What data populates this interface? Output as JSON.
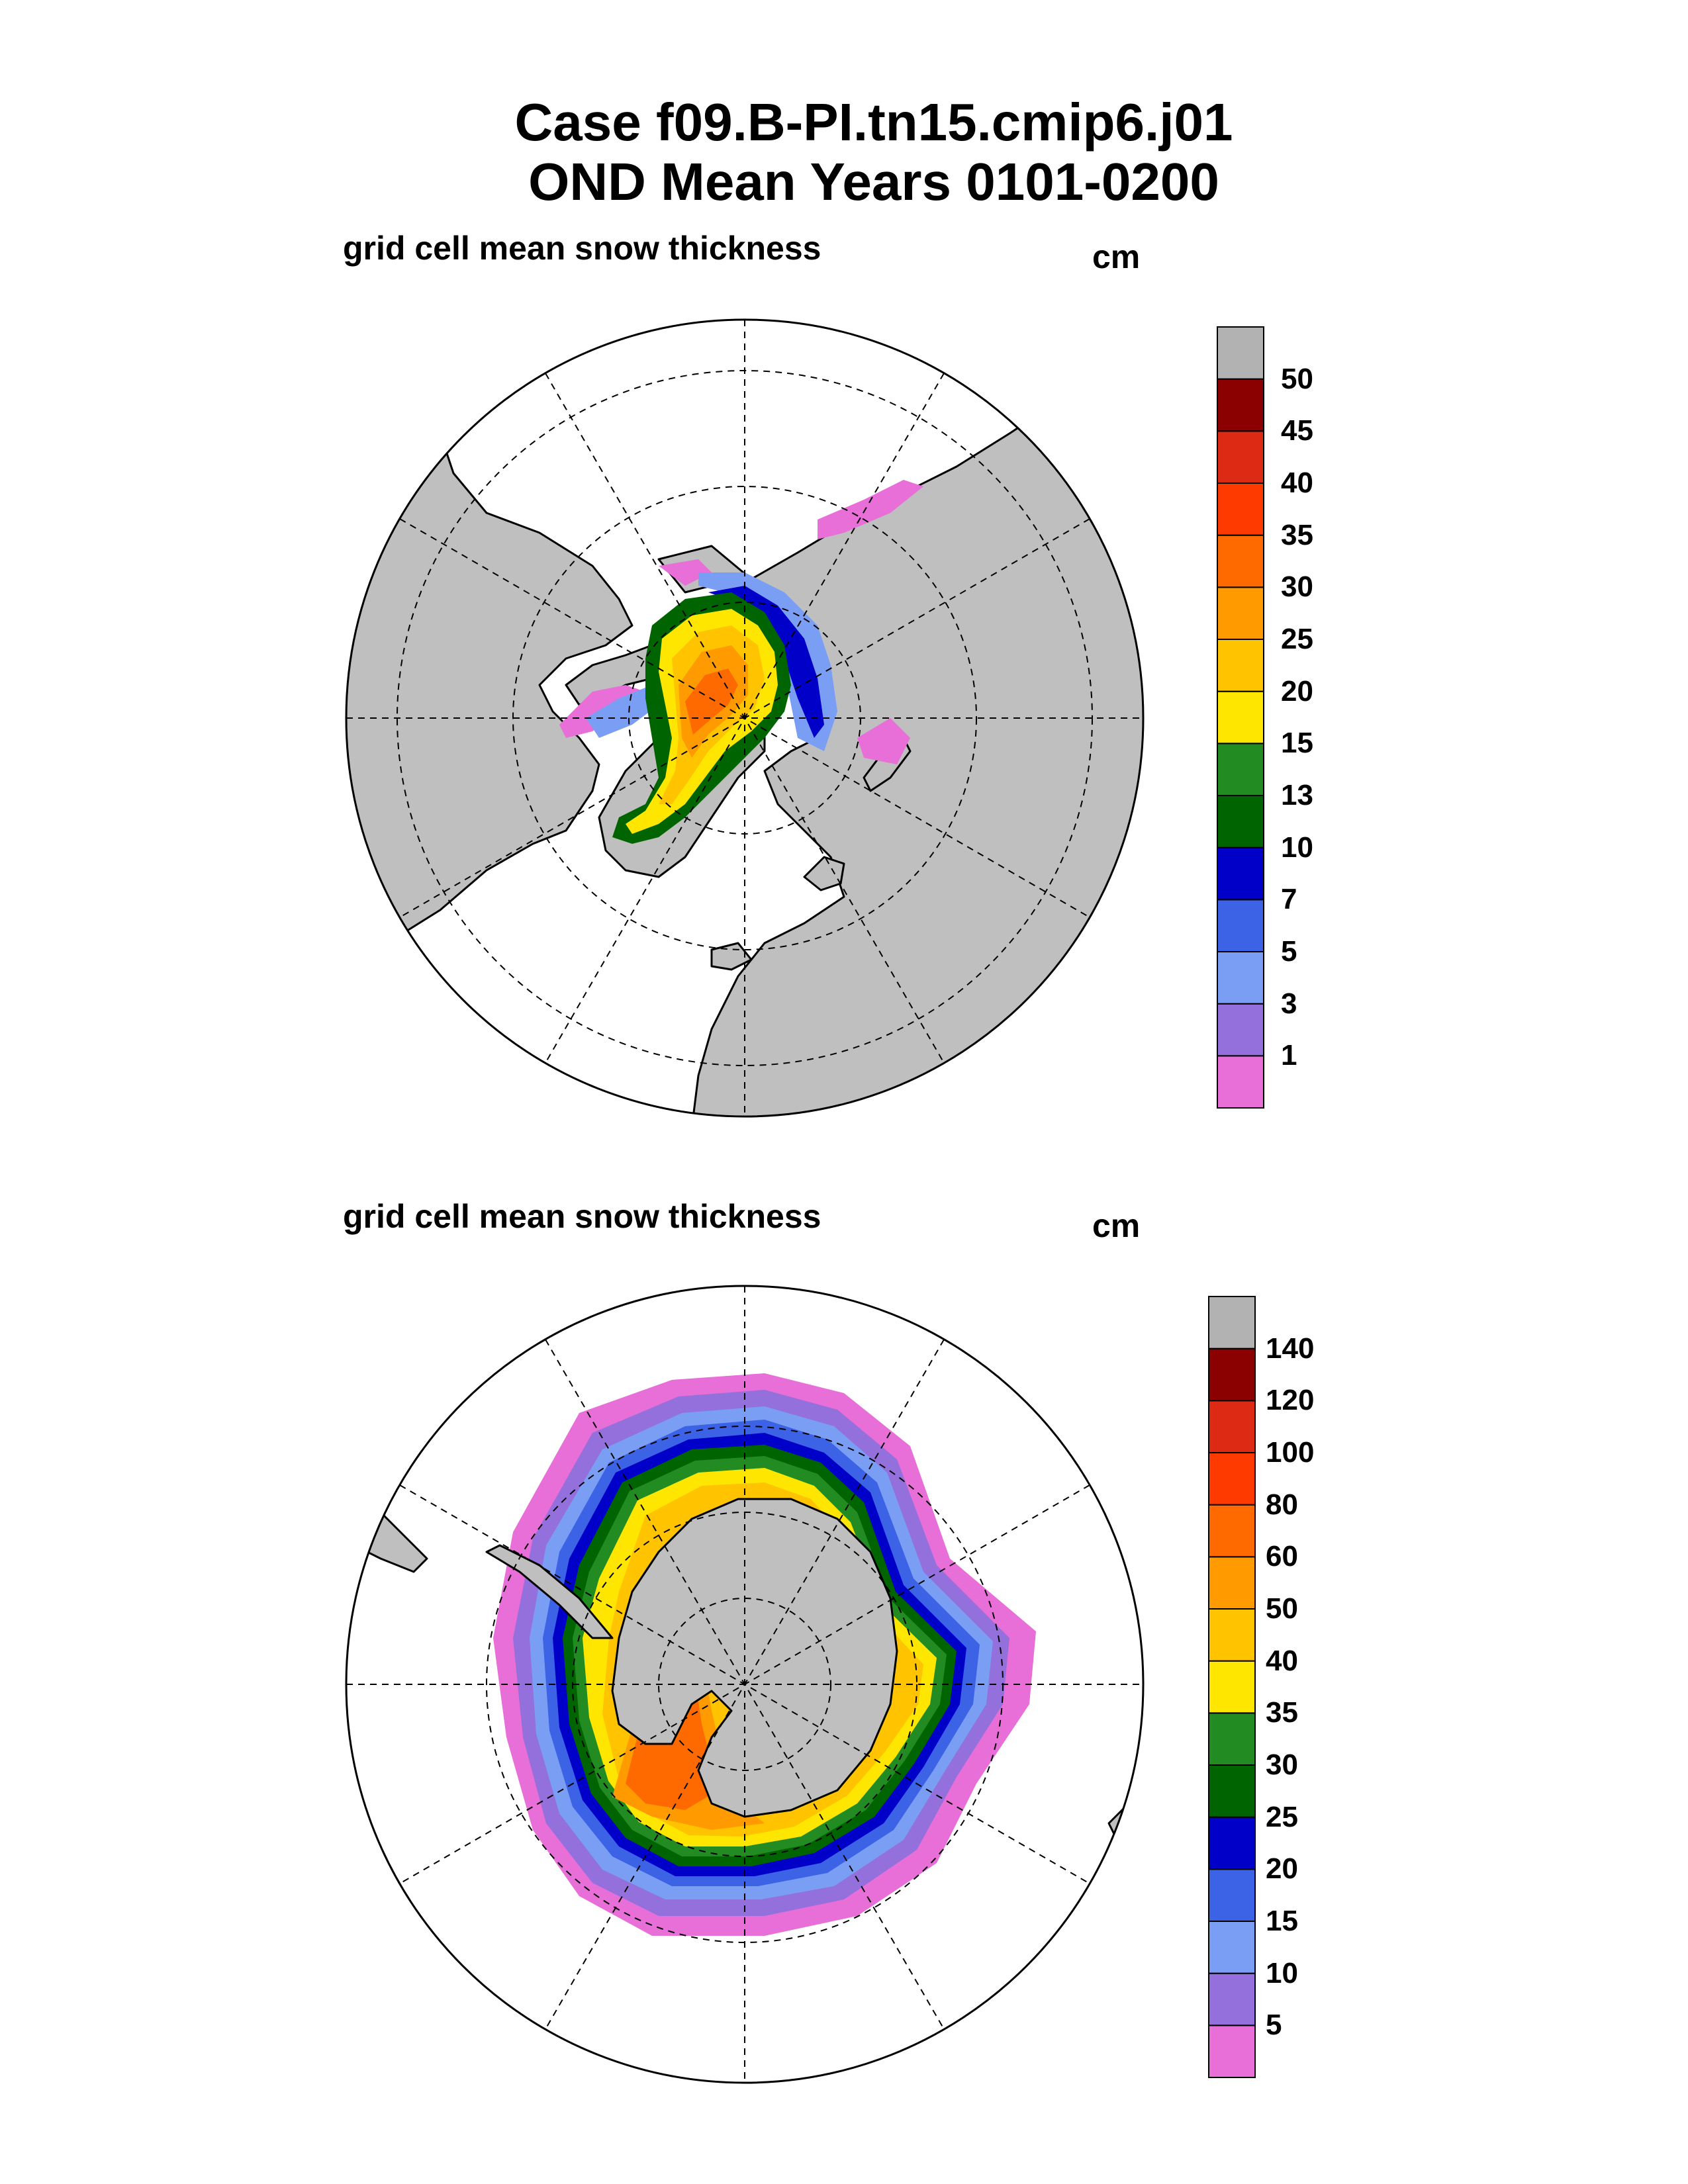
{
  "title": {
    "line1": "Case f09.B-PI.tn15.cmip6.j01",
    "line2": "OND Mean   Years 0101-0200"
  },
  "colors": {
    "land": "#bfbfbf",
    "ocean": "#ffffff",
    "scale": [
      "#e86ed8",
      "#9370db",
      "#7b9ef5",
      "#3c62e6",
      "#0000c8",
      "#006400",
      "#228b22",
      "#ffe600",
      "#ffc300",
      "#ff9a00",
      "#ff6a00",
      "#ff3a00",
      "#dc2a14",
      "#8b0000",
      "#b2b2b2"
    ]
  },
  "panels": [
    {
      "variable_label": "grid cell mean snow thickness",
      "units": "cm",
      "hemisphere": "north",
      "colorbar_labels": [
        "1",
        "3",
        "5",
        "7",
        "10",
        "13",
        "15",
        "20",
        "25",
        "30",
        "35",
        "40",
        "45",
        "50"
      ]
    },
    {
      "variable_label": "grid cell mean snow thickness",
      "units": "cm",
      "hemisphere": "south",
      "colorbar_labels": [
        "5",
        "10",
        "15",
        "20",
        "25",
        "30",
        "35",
        "40",
        "50",
        "60",
        "80",
        "100",
        "120",
        "140"
      ]
    }
  ]
}
